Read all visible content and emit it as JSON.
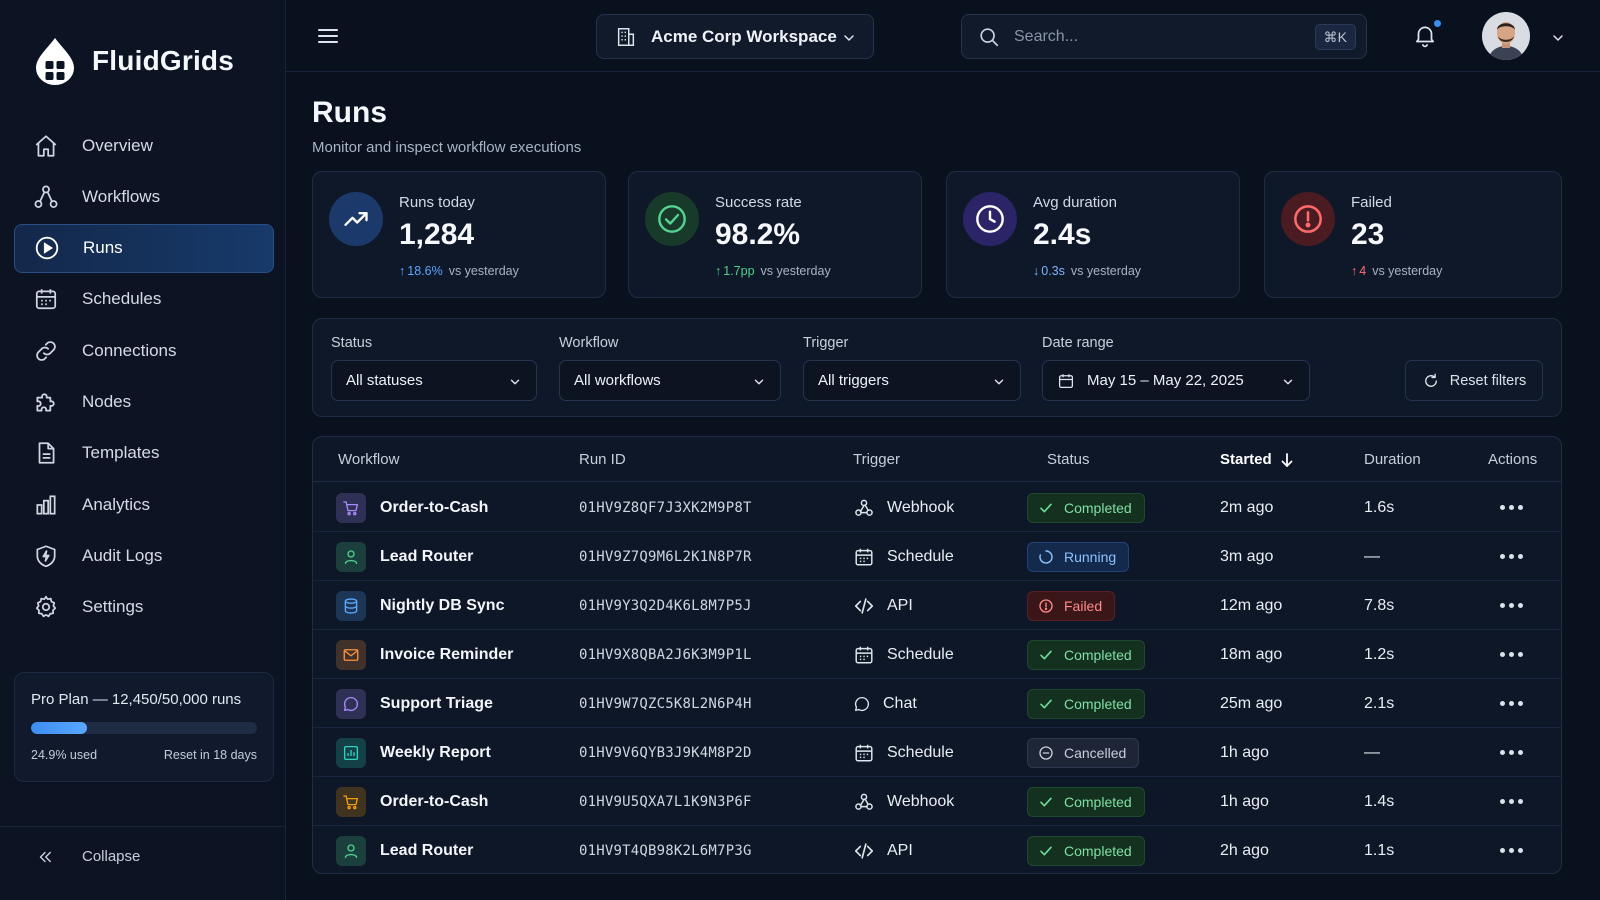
{
  "brand": {
    "name": "FluidGrids"
  },
  "sidebar": {
    "items": [
      {
        "label": "Overview",
        "icon": "home-icon"
      },
      {
        "label": "Workflows",
        "icon": "workflow-icon"
      },
      {
        "label": "Runs",
        "icon": "play-circle-icon",
        "active": true
      },
      {
        "label": "Schedules",
        "icon": "calendar-icon"
      },
      {
        "label": "Connections",
        "icon": "link-icon"
      },
      {
        "label": "Nodes",
        "icon": "puzzle-icon"
      },
      {
        "label": "Templates",
        "icon": "document-icon"
      },
      {
        "label": "Analytics",
        "icon": "bar-chart-icon"
      },
      {
        "label": "Audit Logs",
        "icon": "shield-icon"
      },
      {
        "label": "Settings",
        "icon": "gear-icon"
      }
    ],
    "plan": {
      "title": "Pro Plan — 12,450/50,000 runs",
      "used_fraction": 0.249,
      "used_label": "24.9% used",
      "reset_label": "Reset in 18 days"
    },
    "collapse_label": "Collapse"
  },
  "topbar": {
    "workspace": "Acme Corp Workspace",
    "search_placeholder": "Search...",
    "shortcut": "⌘K"
  },
  "page": {
    "title": "Runs",
    "subtitle": "Monitor and inspect workflow executions"
  },
  "stats": [
    {
      "label": "Runs today",
      "value": "1,284",
      "arrow": "↑",
      "delta": "18.6%",
      "suffix": "vs yesterday",
      "accent": "#3b8df2"
    },
    {
      "label": "Success rate",
      "value": "98.2%",
      "arrow": "↑",
      "delta": "1.7pp",
      "suffix": "vs yesterday",
      "accent": "#4fd18b"
    },
    {
      "label": "Avg duration",
      "value": "2.4s",
      "arrow": "↓",
      "delta": "0.3s",
      "suffix": "vs yesterday",
      "accent": "#8b7cf6"
    },
    {
      "label": "Failed",
      "value": "23",
      "arrow": "↑",
      "delta": "4",
      "suffix": "vs yesterday",
      "accent": "#ef4444"
    }
  ],
  "filters": {
    "status": {
      "label": "Status",
      "value": "All statuses"
    },
    "workflow": {
      "label": "Workflow",
      "value": "All workflows"
    },
    "trigger": {
      "label": "Trigger",
      "value": "All triggers"
    },
    "date": {
      "label": "Date range",
      "value": "May 15 – May 22, 2025"
    },
    "reset_label": "Reset filters"
  },
  "table": {
    "columns": {
      "workflow": "Workflow",
      "run_id": "Run ID",
      "trigger": "Trigger",
      "status": "Status",
      "started": "Started",
      "duration": "Duration",
      "actions": "Actions"
    },
    "rows": [
      {
        "workflow": "Order-to-Cash",
        "wf_icon": "cart-icon",
        "wf_color": "#a78bfa",
        "run_id": "01HV9Z8QF7J3XK2M9P8T",
        "trigger": "Webhook",
        "trigger_icon": "webhook-icon",
        "status": "Completed",
        "started": "2m ago",
        "duration": "1.6s"
      },
      {
        "workflow": "Lead Router",
        "wf_icon": "user-icon",
        "wf_color": "#4fd18b",
        "run_id": "01HV9Z7Q9M6L2K1N8P7R",
        "trigger": "Schedule",
        "trigger_icon": "calendar-icon",
        "status": "Running",
        "started": "3m ago",
        "duration": "—"
      },
      {
        "workflow": "Nightly DB Sync",
        "wf_icon": "database-icon",
        "wf_color": "#5aa7ff",
        "run_id": "01HV9Y3Q2D4K6L8M7P5J",
        "trigger": "API",
        "trigger_icon": "code-icon",
        "status": "Failed",
        "started": "12m ago",
        "duration": "7.8s"
      },
      {
        "workflow": "Invoice Reminder",
        "wf_icon": "mail-icon",
        "wf_color": "#fb923c",
        "run_id": "01HV9X8QBA2J6K3M9P1L",
        "trigger": "Schedule",
        "trigger_icon": "calendar-icon",
        "status": "Completed",
        "started": "18m ago",
        "duration": "1.2s"
      },
      {
        "workflow": "Support Triage",
        "wf_icon": "chat-icon",
        "wf_color": "#a78bfa",
        "run_id": "01HV9W7QZC5K8L2N6P4H",
        "trigger": "Chat",
        "trigger_icon": "chat-icon",
        "status": "Completed",
        "started": "25m ago",
        "duration": "2.1s"
      },
      {
        "workflow": "Weekly Report",
        "wf_icon": "report-icon",
        "wf_color": "#2dd4bf",
        "run_id": "01HV9V6QYB3J9K4M8P2D",
        "trigger": "Schedule",
        "trigger_icon": "calendar-icon",
        "status": "Cancelled",
        "started": "1h ago",
        "duration": "—"
      },
      {
        "workflow": "Order-to-Cash",
        "wf_icon": "cart-icon",
        "wf_color": "#f59e0b",
        "run_id": "01HV9U5QXA7L1K9N3P6F",
        "trigger": "Webhook",
        "trigger_icon": "webhook-icon",
        "status": "Completed",
        "started": "1h ago",
        "duration": "1.4s"
      },
      {
        "workflow": "Lead Router",
        "wf_icon": "user-icon",
        "wf_color": "#4fd18b",
        "run_id": "01HV9T4QB98K2L6M7P3G",
        "trigger": "API",
        "trigger_icon": "code-icon",
        "status": "Completed",
        "started": "2h ago",
        "duration": "1.1s"
      }
    ]
  }
}
